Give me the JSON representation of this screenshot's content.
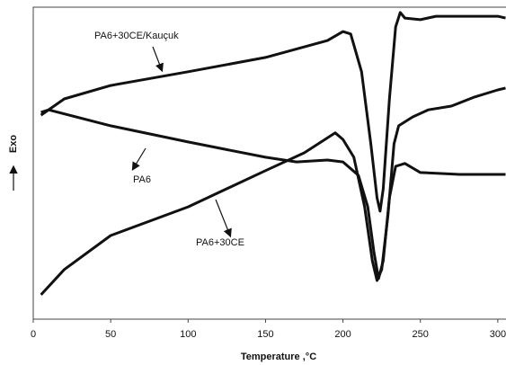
{
  "chart_data": {
    "type": "line",
    "x_label": "Temperature ,°C",
    "y_label": "Exo",
    "xlim": [
      0,
      305
    ],
    "xticks": [
      0,
      50,
      100,
      150,
      200,
      250,
      300
    ],
    "ylim": [
      0,
      100
    ],
    "grid": false,
    "series": [
      {
        "name": "PA6+30CE/Kauçuk",
        "color": "#111111",
        "x": [
          5,
          20,
          50,
          100,
          150,
          190,
          200,
          205,
          212,
          218,
          222,
          224,
          226,
          230,
          234,
          237,
          240,
          250,
          260,
          280,
          300,
          305
        ],
        "values": [
          65.4,
          70.6,
          74.9,
          79.3,
          83.9,
          89.3,
          92.2,
          91.4,
          79.3,
          56.2,
          38.9,
          34.6,
          41.8,
          70.6,
          93.7,
          98.3,
          96.5,
          96,
          97.1,
          97.1,
          97.1,
          96.5
        ]
      },
      {
        "name": "PA6",
        "color": "#111111",
        "x": [
          5,
          10,
          50,
          100,
          150,
          170,
          190,
          200,
          210,
          216,
          220,
          223,
          226,
          230,
          234,
          240,
          250,
          275,
          305
        ],
        "values": [
          66.3,
          67.1,
          62,
          56.8,
          51.9,
          50.4,
          51,
          50.4,
          46.1,
          36,
          21.6,
          13,
          18.7,
          38.9,
          49,
          49.9,
          47,
          46.4,
          46.4
        ]
      },
      {
        "name": "PA6+30CE",
        "color": "#111111",
        "x": [
          5,
          20,
          50,
          100,
          150,
          175,
          195,
          200,
          207,
          214,
          219,
          222,
          225,
          229,
          233,
          236,
          245,
          255,
          270,
          285,
          300,
          305
        ],
        "values": [
          7.8,
          15.9,
          26.8,
          36,
          47.6,
          53.3,
          59.7,
          57.6,
          51.9,
          36,
          18.7,
          12.4,
          15.9,
          33.1,
          56.2,
          62,
          64.8,
          67.1,
          68.3,
          71.2,
          73.5,
          74.1
        ]
      }
    ]
  }
}
